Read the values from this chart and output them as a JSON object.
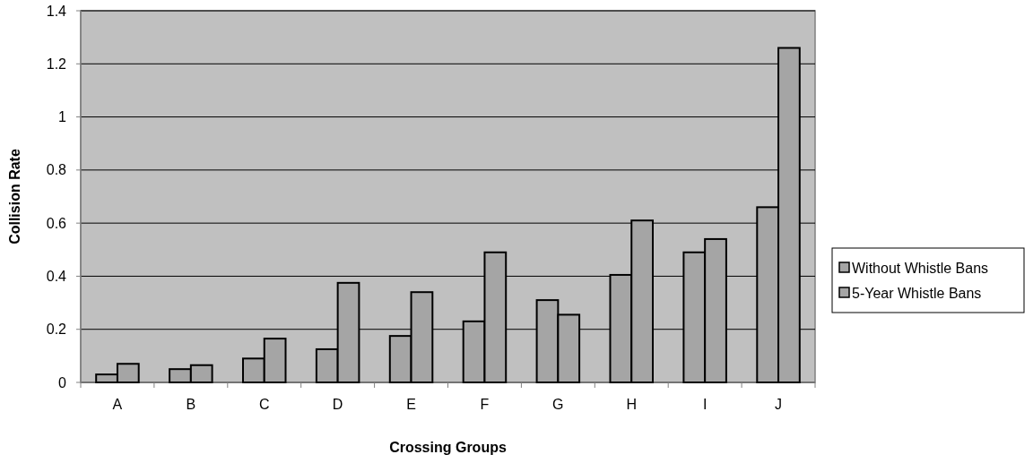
{
  "chart_data": {
    "type": "bar",
    "xlabel": "Crossing Groups",
    "ylabel": "Collision Rate",
    "categories": [
      "A",
      "B",
      "C",
      "D",
      "E",
      "F",
      "G",
      "H",
      "I",
      "J"
    ],
    "series": [
      {
        "name": "Without Whistle Bans",
        "color": "#a5a5a5",
        "values": [
          0.03,
          0.05,
          0.09,
          0.125,
          0.175,
          0.23,
          0.31,
          0.405,
          0.49,
          0.66
        ]
      },
      {
        "name": "5-Year Whistle Bans",
        "color": "#a5a5a5",
        "values": [
          0.07,
          0.065,
          0.165,
          0.375,
          0.34,
          0.49,
          0.255,
          0.61,
          0.54,
          1.26
        ]
      }
    ],
    "ylim": [
      0,
      1.4
    ],
    "yticks": [
      0,
      0.2,
      0.4,
      0.6,
      0.8,
      1,
      1.2,
      1.4
    ],
    "grid": "y",
    "legend": "right"
  }
}
